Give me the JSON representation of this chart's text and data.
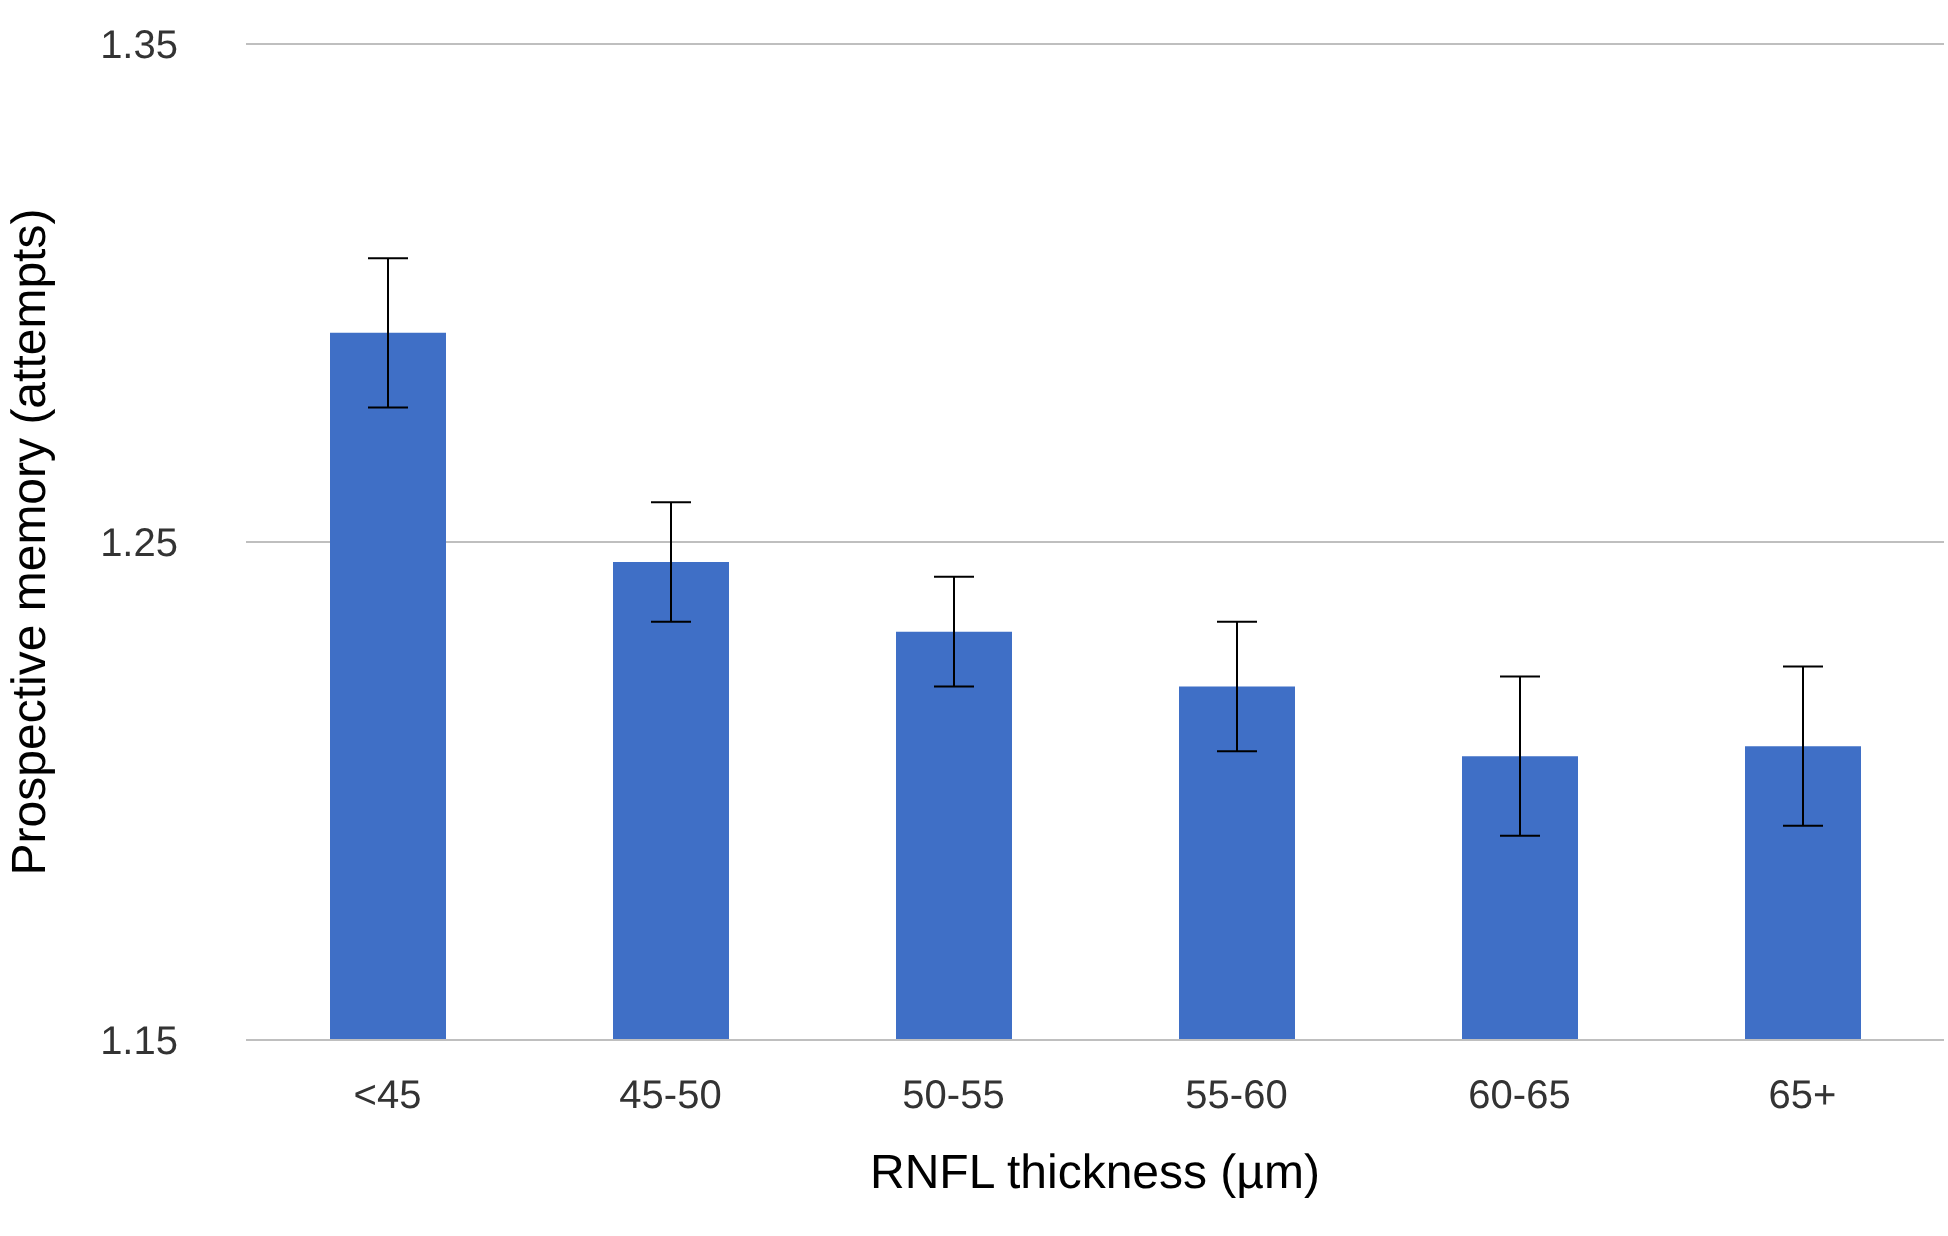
{
  "chart_data": {
    "type": "bar",
    "xlabel": "RNFL thickness (µm)",
    "ylabel": "Prospective memory (attempts)",
    "categories": [
      "<45",
      "45-50",
      "50-55",
      "55-60",
      "60-65",
      "65+"
    ],
    "values": [
      1.292,
      1.246,
      1.232,
      1.221,
      1.207,
      1.209
    ],
    "errors": [
      0.015,
      0.012,
      0.011,
      0.013,
      0.016,
      0.016
    ],
    "color": "#3f6fc6",
    "ylim": [
      1.15,
      1.35
    ],
    "yticks": [
      1.15,
      1.25,
      1.35
    ],
    "grid": "y"
  }
}
